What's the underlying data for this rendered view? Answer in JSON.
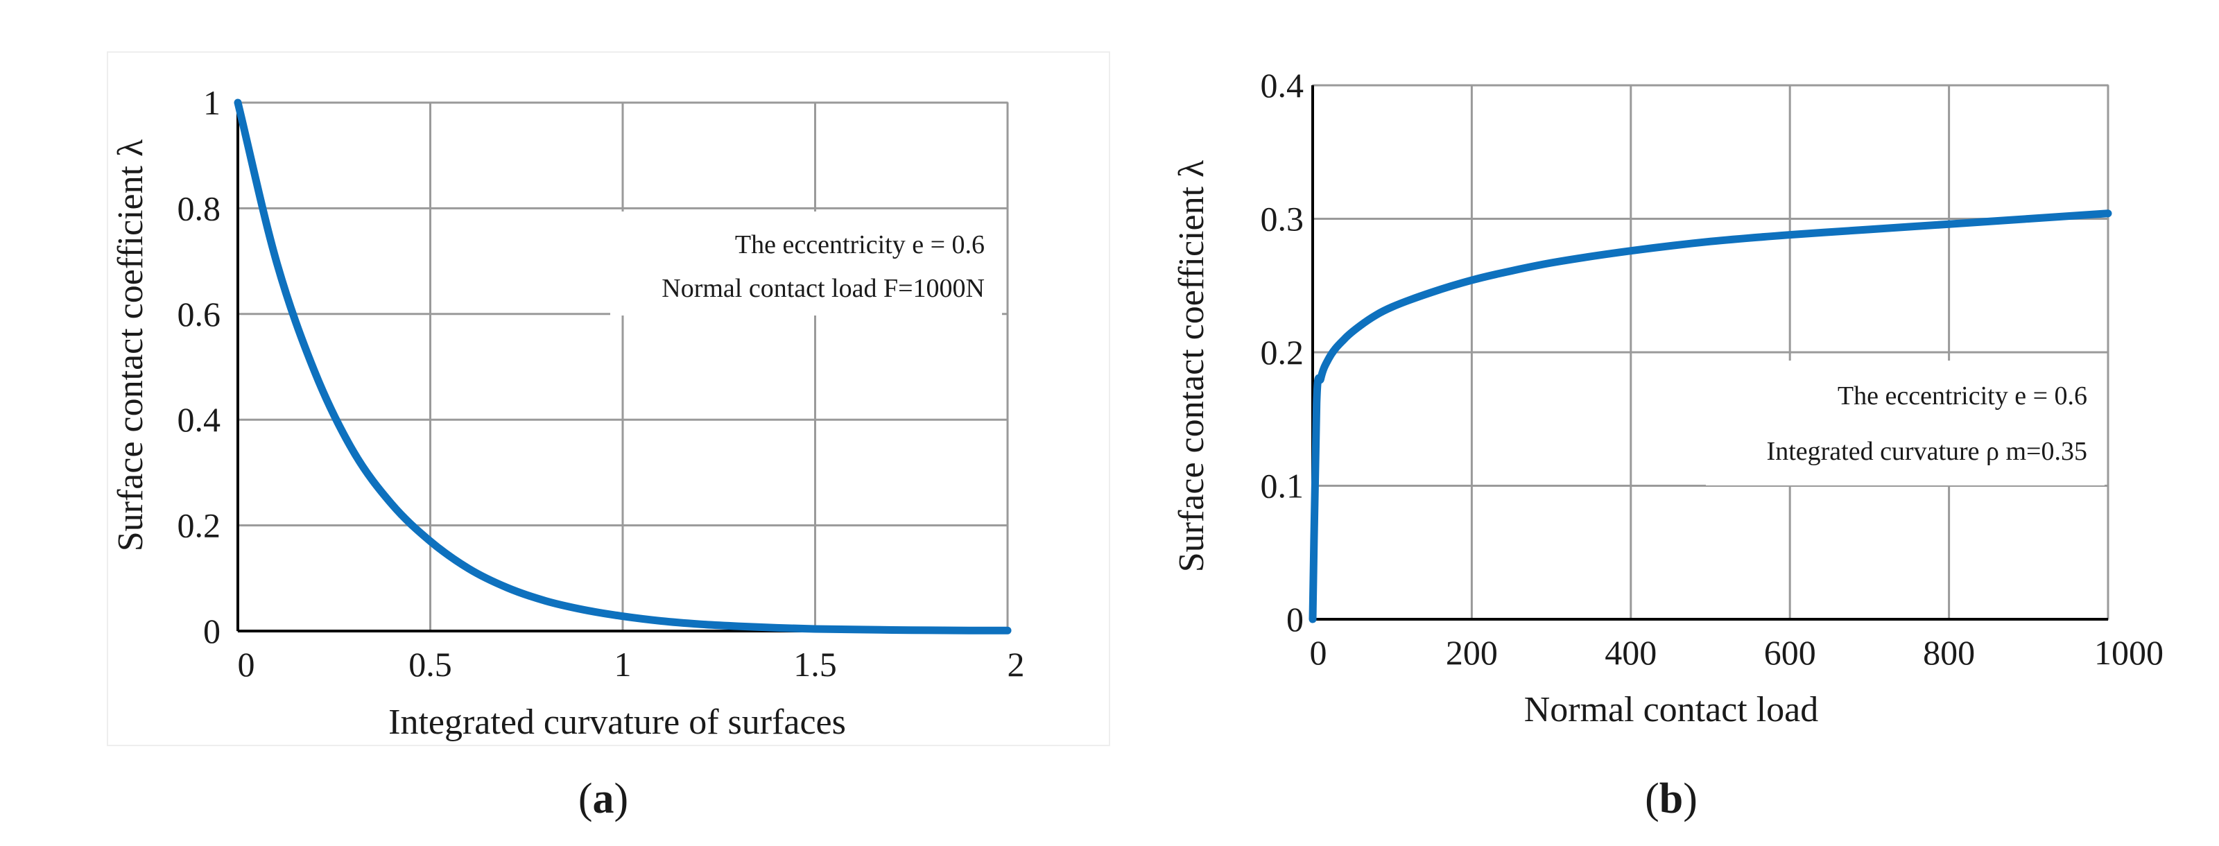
{
  "colors": {
    "curve": "#0e71be",
    "grid": "#9a9a9a",
    "legend_box": "#ffffff"
  },
  "chart_data": [
    {
      "type": "line",
      "panel_label": "a",
      "title": "",
      "xlabel": "Integrated curvature of surfaces",
      "ylabel": "Surface contact coefficient λ",
      "xlim": [
        0,
        2
      ],
      "ylim": [
        0,
        1
      ],
      "x_ticks": [
        0,
        0.5,
        1,
        1.5,
        2
      ],
      "x_tick_labels": [
        "0",
        "0.5",
        "1",
        "1.5",
        "2"
      ],
      "y_ticks": [
        0,
        0.2,
        0.4,
        0.6,
        0.8,
        1
      ],
      "y_tick_labels": [
        "0",
        "0.2",
        "0.4",
        "0.6",
        "0.8",
        "1"
      ],
      "grid": true,
      "annotations": [
        "The eccentricity e = 0.6",
        "Normal contact load F=1000N"
      ],
      "legend_placement": "top-right",
      "x": [
        0,
        0.1,
        0.2,
        0.3,
        0.4,
        0.5,
        0.6,
        0.7,
        0.8,
        0.9,
        1.0,
        1.1,
        1.2,
        1.3,
        1.4,
        1.5,
        1.6,
        1.7,
        1.8,
        1.9,
        2.0
      ],
      "y": [
        1.0,
        0.7,
        0.49,
        0.34,
        0.24,
        0.17,
        0.118,
        0.082,
        0.057,
        0.04,
        0.028,
        0.019,
        0.013,
        0.009,
        0.006,
        0.004,
        0.003,
        0.002,
        0.0015,
        0.001,
        0.001
      ]
    },
    {
      "type": "line",
      "panel_label": "b",
      "title": "",
      "xlabel": "Normal contact load",
      "ylabel": "Surface contact coefficient λ",
      "xlim": [
        0,
        1000
      ],
      "ylim": [
        0,
        0.4
      ],
      "x_ticks": [
        0,
        200,
        400,
        600,
        800,
        1000
      ],
      "x_tick_labels": [
        "0",
        "200",
        "400",
        "600",
        "800",
        "1000"
      ],
      "y_ticks": [
        0,
        0.1,
        0.2,
        0.3,
        0.4
      ],
      "y_tick_labels": [
        "0",
        "0.1",
        "0.2",
        "0.3",
        "0.4"
      ],
      "grid": true,
      "annotations": [
        "The eccentricity e = 0.6",
        "Integrated curvature ρ m=0.35"
      ],
      "legend_placement": "center-right",
      "x": [
        0,
        5,
        10,
        20,
        40,
        60,
        80,
        100,
        150,
        200,
        250,
        300,
        400,
        500,
        600,
        700,
        800,
        900,
        1000
      ],
      "y": [
        0,
        0.162,
        0.18,
        0.195,
        0.21,
        0.22,
        0.228,
        0.234,
        0.245,
        0.254,
        0.261,
        0.267,
        0.276,
        0.283,
        0.288,
        0.292,
        0.296,
        0.3,
        0.304
      ]
    }
  ]
}
